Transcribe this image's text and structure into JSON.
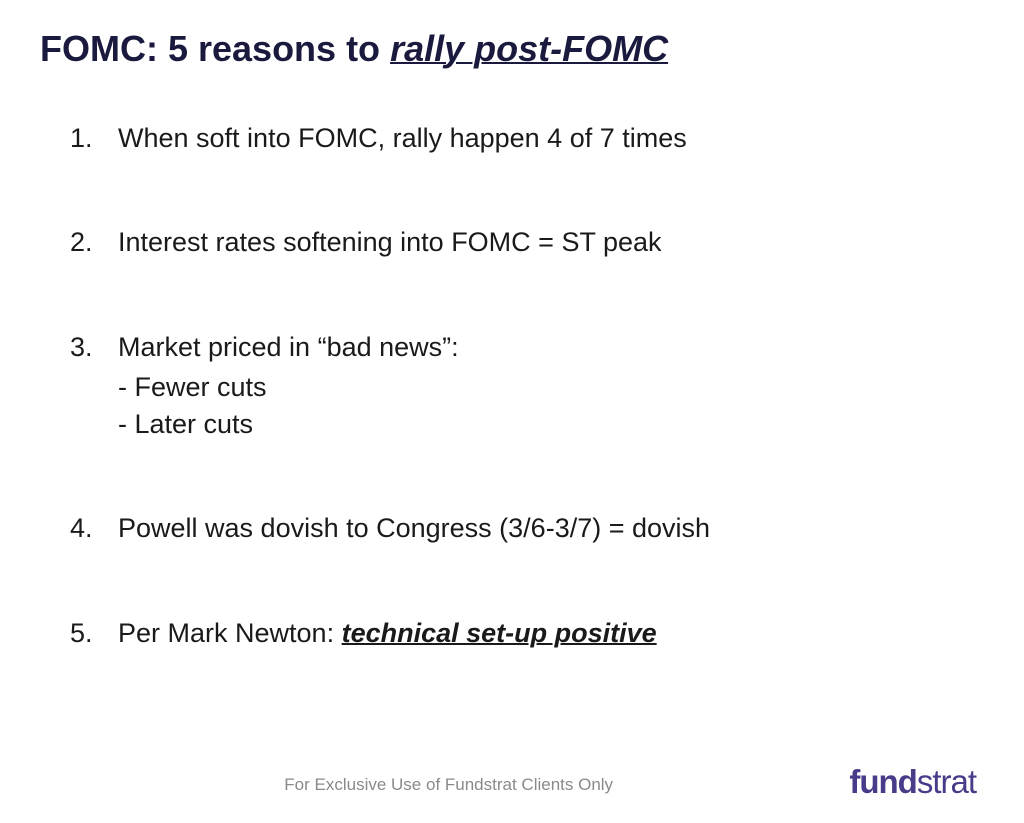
{
  "title": {
    "prefix": "FOMC: 5 reasons to ",
    "emphasis": "rally post-FOMC"
  },
  "colors": {
    "title_color": "#1a1a3e",
    "body_color": "#1a1a1a",
    "disclaimer_color": "#8a8a8a",
    "logo_color": "#4a3b8a",
    "background": "#ffffff"
  },
  "typography": {
    "title_fontsize": 36,
    "body_fontsize": 27,
    "disclaimer_fontsize": 17,
    "logo_fontsize": 33
  },
  "items": [
    {
      "number": "1.",
      "text": "When soft into FOMC, rally happen 4 of 7 times",
      "subitems": []
    },
    {
      "number": "2.",
      "text": "Interest rates softening into FOMC = ST peak",
      "subitems": []
    },
    {
      "number": "3.",
      "text": "Market priced in “bad news”:",
      "subitems": [
        "- Fewer cuts",
        "- Later cuts"
      ]
    },
    {
      "number": "4.",
      "text": "Powell was dovish to Congress (3/6-3/7) = dovish",
      "subitems": []
    },
    {
      "number": "5.",
      "prefix": "Per Mark Newton: ",
      "emphasis": "technical set-up positive",
      "subitems": []
    }
  ],
  "footer": {
    "disclaimer": "For Exclusive Use of Fundstrat Clients Only",
    "logo_bold": "fund",
    "logo_light": "strat"
  }
}
